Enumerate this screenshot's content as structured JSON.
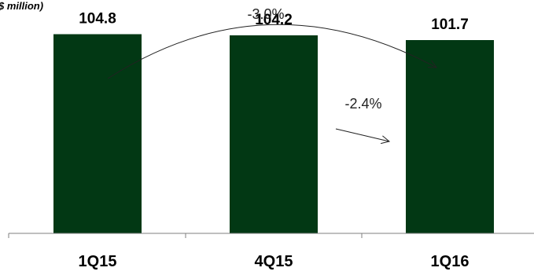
{
  "chart_data": {
    "type": "bar",
    "unit_label": "$ million)",
    "categories": [
      "1Q15",
      "4Q15",
      "1Q16"
    ],
    "values": [
      104.8,
      104.2,
      101.7
    ],
    "value_labels": [
      "104.8",
      "104.2",
      "101.7"
    ],
    "title": "",
    "xlabel": "",
    "ylabel": "",
    "ylim": [
      0,
      117
    ],
    "grid": false,
    "colors": {
      "bar": "#023814",
      "axis": "#7f7f7f",
      "arrow": "#222222"
    },
    "annotations": [
      {
        "text": "-3.0%",
        "from": "1Q15",
        "to": "1Q16",
        "style": "curved-arrow"
      },
      {
        "text": "-2.4%",
        "from": "4Q15",
        "to": "1Q16",
        "style": "straight-arrow"
      }
    ]
  }
}
